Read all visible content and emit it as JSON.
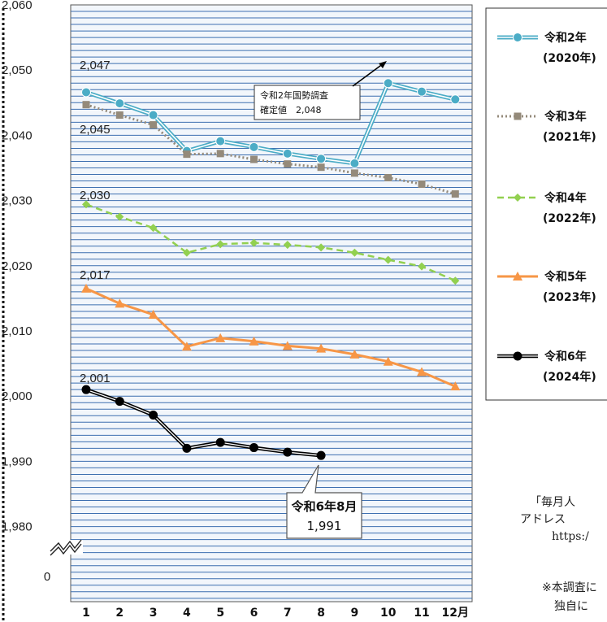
{
  "chart_data": {
    "type": "line",
    "categories": [
      "1",
      "2",
      "3",
      "4",
      "5",
      "6",
      "7",
      "8",
      "9",
      "10",
      "11",
      "12月"
    ],
    "y_ticks": [
      "2,060",
      "2,050",
      "2,040",
      "2,030",
      "2,020",
      "2,010",
      "2,000",
      "1,990",
      "1,980"
    ],
    "y_origin_label": "0",
    "ylim": [
      1970,
      2060
    ],
    "y_axis_break": true,
    "grid": true,
    "legend_position": "right",
    "series": [
      {
        "key": "s2020",
        "name": "令和2年",
        "name_sub": "(2020年)",
        "color": "#4bacc6",
        "style": "double-circle",
        "values": [
          2046.6,
          2044.9,
          2043.1,
          2037.6,
          2039.1,
          2038.2,
          2037.2,
          2036.4,
          2035.7,
          2048.0,
          2046.7,
          2045.5
        ],
        "start_label": "2,047"
      },
      {
        "key": "s2021",
        "name": "令和3年",
        "name_sub": "(2021年)",
        "color": "#948a7a",
        "style": "dotted-square",
        "values": [
          2044.7,
          2043.1,
          2041.6,
          2037.1,
          2037.2,
          2036.3,
          2035.6,
          2035.1,
          2034.2,
          2033.5,
          2032.5,
          2031.0
        ],
        "start_label": "2,045"
      },
      {
        "key": "s2022",
        "name": "令和4年",
        "name_sub": "(2022年)",
        "color": "#92d050",
        "style": "dashed-diamond",
        "values": [
          2029.4,
          2027.5,
          2025.8,
          2022.0,
          2023.3,
          2023.5,
          2023.2,
          2022.8,
          2022.0,
          2020.9,
          2019.9,
          2017.7
        ],
        "start_label": "2,030"
      },
      {
        "key": "s2023",
        "name": "令和5年",
        "name_sub": "(2023年)",
        "color": "#f79646",
        "style": "solid-triangle",
        "values": [
          2016.5,
          2014.2,
          2012.5,
          2007.6,
          2008.9,
          2008.4,
          2007.7,
          2007.3,
          2006.4,
          2005.3,
          2003.7,
          2001.5
        ],
        "start_label": "2,017"
      },
      {
        "key": "s2024",
        "name": "令和6年",
        "name_sub": "(2024年)",
        "color": "#000000",
        "style": "double-dot",
        "values": [
          2001.0,
          1999.2,
          1997.1,
          1992.0,
          1992.9,
          1992.1,
          1991.4,
          1990.9,
          null,
          null,
          null,
          null
        ],
        "start_label": "2,001"
      }
    ],
    "annotations": {
      "census": {
        "line1": "令和2年国勢調査",
        "line2": "確定値　2,048"
      },
      "latest": {
        "title": "令和6年8月",
        "value": "1,991"
      }
    }
  },
  "side_text": {
    "line1": "「毎月人",
    "line2": "アドレス",
    "line3": "https:/",
    "line4": "※本調査に",
    "line5": "独自に"
  }
}
